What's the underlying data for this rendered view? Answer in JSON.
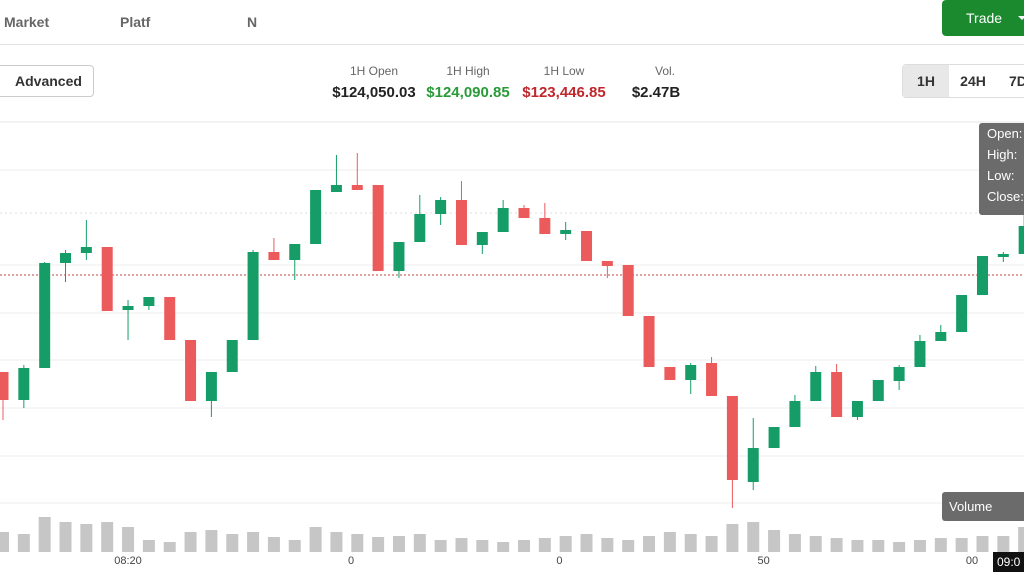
{
  "nav": {
    "items": [
      "Market",
      "Platf",
      "N"
    ],
    "trade_button": "Trade"
  },
  "toolbar": {
    "advanced_button": "Advanced",
    "stats": [
      {
        "label": "1H Open",
        "value": "$124,050.03"
      },
      {
        "label": "1H High",
        "value": "$124,090.85"
      },
      {
        "label": "1H Low",
        "value": "$123,446.85"
      },
      {
        "label": "Vol.",
        "value": "$2.47B"
      }
    ],
    "timeframes": [
      "1H",
      "24H",
      "7D"
    ]
  },
  "tooltip": [
    "Open:",
    "High:",
    "Low:",
    "Close:"
  ],
  "volume_label": "Volume",
  "time_badge": "09:0",
  "chart_data": {
    "type": "candlestick",
    "up_color": "#169c66",
    "down_color": "#ec5b5b",
    "volume_color": "#c6c6c6",
    "ylim": [
      0,
      390
    ],
    "volume_ylim": [
      0,
      60
    ],
    "x_labels": [
      {
        "value": 6,
        "label": "08:20"
      },
      {
        "value": 16.7,
        "label": "0"
      },
      {
        "value": 26.7,
        "label": "0"
      },
      {
        "value": 36.5,
        "label": "50"
      },
      {
        "value": 46.5,
        "label": "00"
      }
    ],
    "open": [
      138,
      110,
      142,
      247,
      257,
      263,
      200,
      204,
      213,
      170,
      109,
      138,
      170,
      258,
      250,
      266,
      318,
      325,
      325,
      239,
      268,
      296,
      310,
      265,
      278,
      302,
      292,
      276,
      279,
      249,
      245,
      194,
      143,
      130,
      147,
      114,
      28,
      62,
      83,
      109,
      138,
      93,
      109,
      129,
      143,
      169,
      178,
      215,
      253,
      256
    ],
    "high": [
      138,
      145,
      248,
      260,
      290,
      263,
      210,
      213,
      213,
      170,
      138,
      170,
      260,
      272,
      266,
      320,
      355,
      357,
      325,
      268,
      315,
      313,
      329,
      278,
      310,
      305,
      307,
      288,
      279,
      249,
      245,
      194,
      143,
      147,
      153,
      114,
      92,
      83,
      115,
      144,
      146,
      109,
      130,
      145,
      175,
      185,
      215,
      254,
      258,
      295
    ],
    "low": [
      90,
      102,
      142,
      228,
      250,
      199,
      170,
      200,
      170,
      109,
      93,
      138,
      170,
      250,
      230,
      266,
      318,
      320,
      239,
      232,
      268,
      285,
      265,
      256,
      278,
      292,
      276,
      270,
      249,
      232,
      194,
      143,
      130,
      116,
      114,
      2,
      20,
      62,
      83,
      109,
      93,
      90,
      109,
      120,
      143,
      169,
      178,
      215,
      248,
      256
    ],
    "close": [
      110,
      142,
      247,
      257,
      263,
      199,
      204,
      213,
      170,
      109,
      138,
      170,
      258,
      250,
      266,
      320,
      325,
      320,
      239,
      268,
      296,
      310,
      265,
      278,
      302,
      292,
      276,
      280,
      249,
      244,
      194,
      143,
      130,
      145,
      114,
      30,
      62,
      83,
      109,
      138,
      93,
      109,
      130,
      143,
      169,
      178,
      215,
      254,
      256,
      284
    ],
    "volume": [
      20,
      18,
      35,
      30,
      28,
      30,
      25,
      12,
      10,
      20,
      22,
      18,
      20,
      15,
      12,
      25,
      20,
      18,
      15,
      16,
      18,
      12,
      14,
      12,
      10,
      12,
      14,
      16,
      18,
      14,
      12,
      16,
      20,
      18,
      16,
      28,
      30,
      22,
      18,
      16,
      14,
      12,
      12,
      10,
      12,
      14,
      14,
      16,
      16,
      25
    ]
  }
}
